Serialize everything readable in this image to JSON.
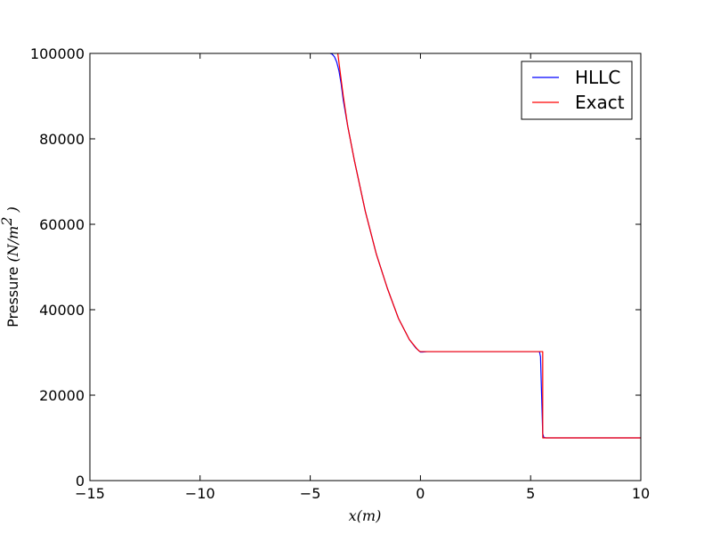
{
  "chart_data": {
    "type": "line",
    "xlabel": "x(m)",
    "ylabel_prefix": "Pressure ",
    "ylabel_math_open": "(N/m",
    "ylabel_math_sup": "2",
    "ylabel_math_close": " )",
    "xlim": [
      -15,
      10
    ],
    "ylim": [
      0,
      100000
    ],
    "x_ticks": [
      -15,
      -10,
      -5,
      0,
      5,
      10
    ],
    "x_tick_labels": [
      "−15",
      "−10",
      "−5",
      "0",
      "5",
      "10"
    ],
    "y_ticks": [
      0,
      20000,
      40000,
      60000,
      80000,
      100000
    ],
    "y_tick_labels": [
      "0",
      "20000",
      "40000",
      "60000",
      "80000",
      "100000"
    ],
    "grid": false,
    "legend_position": "top-right",
    "series": [
      {
        "name": "HLLC",
        "color": "#0000ff",
        "x": [
          -4.1,
          -4.0,
          -3.9,
          -3.8,
          -3.7,
          -3.6,
          -3.5,
          -3.3,
          -3.0,
          -2.5,
          -2.0,
          -1.5,
          -1.0,
          -0.5,
          -0.2,
          -0.05,
          0.0,
          0.1,
          0.3,
          1.0,
          3.0,
          5.0,
          5.4,
          5.45,
          5.5,
          5.55,
          5.6,
          5.7,
          6.0,
          8.0,
          10.0
        ],
        "y": [
          100000,
          99800,
          99200,
          98000,
          96000,
          93000,
          89000,
          83000,
          75000,
          63000,
          53000,
          45000,
          38000,
          33000,
          31000,
          30300,
          30100,
          30100,
          30200,
          30200,
          30200,
          30200,
          30200,
          29000,
          20000,
          11000,
          10100,
          10000,
          10000,
          10000,
          10000
        ]
      },
      {
        "name": "Exact",
        "color": "#ff0000",
        "x": [
          -3.75,
          -3.7,
          -3.6,
          -3.5,
          -3.3,
          -3.0,
          -2.5,
          -2.0,
          -1.5,
          -1.0,
          -0.5,
          -0.15,
          -0.05,
          0.0,
          0.3,
          1.0,
          3.0,
          5.0,
          5.55,
          5.55,
          6.0,
          8.0,
          10.0
        ],
        "y": [
          100000,
          98000,
          94000,
          90000,
          83000,
          75000,
          63000,
          53000,
          45000,
          38000,
          33000,
          30800,
          30300,
          30200,
          30200,
          30200,
          30200,
          30200,
          30200,
          10000,
          10000,
          10000,
          10000
        ]
      }
    ]
  }
}
